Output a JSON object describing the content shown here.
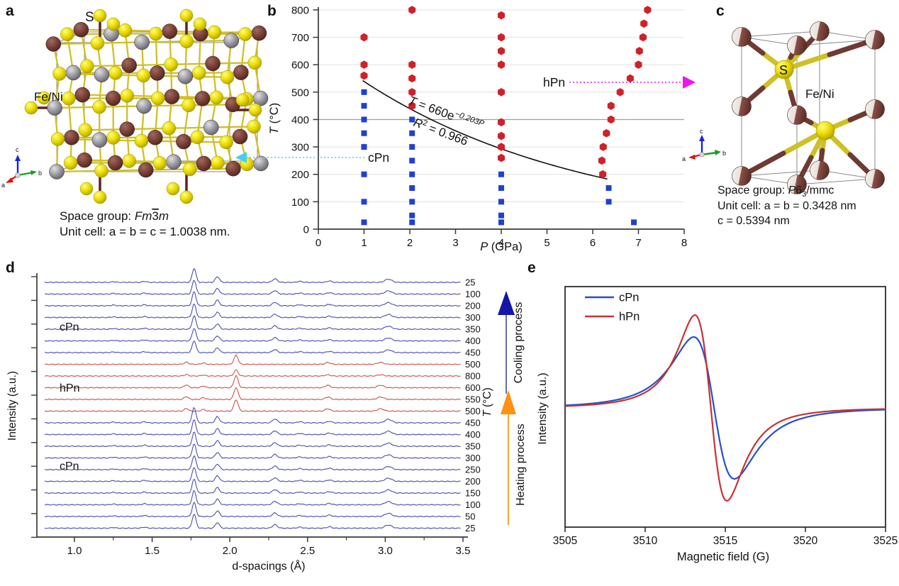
{
  "panel_a": {
    "label": "a",
    "s_label": "S",
    "metal_label": "Fe/Ni",
    "axis": {
      "a": "a",
      "b": "b",
      "c": "c"
    },
    "caption": {
      "sg_prefix": "Space group: ",
      "sg_italic": "Fm",
      "sg_bar": "3",
      "sg_end": "m",
      "unit": "Unit cell: a = b = c = 1.0038 nm."
    }
  },
  "panel_b": {
    "label": "b",
    "ylabel_T": "T",
    "ylabel_unit": " (°C)",
    "xlabel_P": "P",
    "xlabel_unit": " (GPa)",
    "cPn_label": "cPn",
    "hPn_label": "hPn",
    "eq_T": "T",
    "eq_mid": " = 660e",
    "eq_exp": "−0.203P",
    "r2_R": "R",
    "r2_sup": "2",
    "r2_rest": " = 0.966",
    "cPn_color": "#1743e0",
    "hPn_color": "#e02020",
    "cyan_arrow_color": "#45d0ee",
    "magenta_arrow_color": "#f012f0"
  },
  "panel_c": {
    "label": "c",
    "s_label": "S",
    "metal_label": "Fe/Ni",
    "axis": {
      "a": "a",
      "b": "b",
      "c": "c"
    },
    "caption": {
      "sg_prefix": "Space group: ",
      "sg_italic": "P",
      "sg_num": "6",
      "sg_sub": "3",
      "sg_end": "/mmc",
      "unit1": "Unit cell: a = b = 0.3428 nm",
      "unit2": "c = 0.5394 nm"
    }
  },
  "panel_d": {
    "label": "d",
    "xlabel": "d-spacings (Å)",
    "ylabel": "Intensity (a.u.)",
    "taxis_T": "T",
    "taxis_unit": " (°C)",
    "cPn_top": "cPn",
    "hPn_mid": "hPn",
    "cPn_bottom": "cPn",
    "cooling_text": "Cooling process",
    "heating_text": "Heating process",
    "cooling_text_color": "#2233cc",
    "heating_text_color": "#ee1111",
    "cooling_arrow_color": "#1515a8",
    "heating_arrow_color": "#ff9211"
  },
  "panel_e": {
    "label": "e",
    "xlabel": "Magnetic field (G)",
    "ylabel": "Intensity (a.u.)"
  },
  "structures": {
    "s_color": "#e6d800",
    "metal_brown": "#7a4038",
    "metal_gray": "#9a9aa2",
    "metal_white": "#f2efec",
    "bond_yellow": "#cfc026",
    "bond_maroon": "#6e3a32",
    "cell_line": "#8a8a8a",
    "stick_dark": "#5c2424"
  },
  "chart_data": [
    {
      "id": "b",
      "type": "scatter",
      "xlabel": "P (GPa)",
      "ylabel": "T (°C)",
      "xlim": [
        0,
        8
      ],
      "ylim": [
        0,
        800
      ],
      "xticks": [
        0,
        1,
        2,
        3,
        4,
        5,
        6,
        7,
        8
      ],
      "yticks": [
        0,
        100,
        200,
        300,
        400,
        500,
        600,
        700,
        800
      ],
      "grid": "horizontal",
      "highlight_gridline": 400,
      "series": [
        {
          "name": "cPn",
          "marker": "square",
          "color": "#1f41d0",
          "points": [
            [
              1,
              25
            ],
            [
              1,
              100
            ],
            [
              1,
              200
            ],
            [
              1,
              300
            ],
            [
              1,
              350
            ],
            [
              1,
              400
            ],
            [
              1,
              450
            ],
            [
              1,
              500
            ],
            [
              2.05,
              25
            ],
            [
              2.05,
              50
            ],
            [
              2.05,
              100
            ],
            [
              2.05,
              150
            ],
            [
              2.05,
              200
            ],
            [
              2.05,
              250
            ],
            [
              2.05,
              300
            ],
            [
              2.05,
              350
            ],
            [
              2.05,
              400
            ],
            [
              4,
              25
            ],
            [
              4,
              50
            ],
            [
              4,
              100
            ],
            [
              4,
              150
            ],
            [
              4,
              200
            ],
            [
              6.35,
              100
            ],
            [
              6.35,
              150
            ],
            [
              6.9,
              25
            ]
          ]
        },
        {
          "name": "hPn",
          "marker": "hexagon",
          "color": "#cf2127",
          "points": [
            [
              1,
              560
            ],
            [
              1,
              600
            ],
            [
              1,
              700
            ],
            [
              2.05,
              450
            ],
            [
              2.05,
              500
            ],
            [
              2.05,
              550
            ],
            [
              2.05,
              600
            ],
            [
              2.05,
              800
            ],
            [
              4,
              260
            ],
            [
              4,
              300
            ],
            [
              4,
              340
            ],
            [
              4,
              390
            ],
            [
              4,
              500
            ],
            [
              4,
              600
            ],
            [
              4,
              650
            ],
            [
              4,
              700
            ],
            [
              4,
              780
            ],
            [
              6.22,
              200
            ],
            [
              6.2,
              250
            ],
            [
              6.23,
              300
            ],
            [
              6.3,
              350
            ],
            [
              6.4,
              400
            ],
            [
              6.4,
              450
            ],
            [
              6.6,
              500
            ],
            [
              6.82,
              550
            ],
            [
              7.0,
              600
            ],
            [
              7.02,
              650
            ],
            [
              7.1,
              700
            ],
            [
              7.12,
              750
            ],
            [
              7.2,
              800
            ]
          ]
        }
      ],
      "fit": {
        "equation": "T = 660e^(−0.203P)",
        "A": 660,
        "k": 0.203,
        "r2": 0.966,
        "p_start": 0.97,
        "p_end": 6.33
      },
      "annotations": [
        {
          "text": "cPn",
          "arrow": "left",
          "T": 262
        },
        {
          "text": "hPn",
          "arrow": "right",
          "T": 535
        }
      ]
    },
    {
      "id": "d",
      "type": "line-stack",
      "xlabel": "d-spacings (Å)",
      "ylabel": "Intensity (a.u.)",
      "xlim": [
        0.76,
        3.5
      ],
      "xticks": [
        1.0,
        1.5,
        2.0,
        2.5,
        3.0,
        3.5
      ],
      "minor_xticks": [
        1.25,
        1.75,
        2.25,
        2.75,
        3.25
      ],
      "temp_axis_label": "T (°C)",
      "traces": [
        {
          "temp": "25",
          "phase": "cPn",
          "scale": 1.0
        },
        {
          "temp": "100",
          "phase": "cPn",
          "scale": 1.0
        },
        {
          "temp": "200",
          "phase": "cPn",
          "scale": 1.0
        },
        {
          "temp": "300",
          "phase": "cPn",
          "scale": 0.95
        },
        {
          "temp": "350",
          "phase": "cPn",
          "scale": 0.95
        },
        {
          "temp": "400",
          "phase": "cPn",
          "scale": 0.9
        },
        {
          "temp": "450",
          "phase": "cPn",
          "scale": 0.85
        },
        {
          "temp": "500",
          "phase": "hPn",
          "scale": 0.75
        },
        {
          "temp": "800",
          "phase": "hPn",
          "scale": 0.5
        },
        {
          "temp": "600",
          "phase": "hPn",
          "scale": 1.0
        },
        {
          "temp": "550",
          "phase": "hPn",
          "scale": 1.0
        },
        {
          "temp": "500",
          "phase": "hPn",
          "scale": 0.95
        },
        {
          "temp": "450",
          "phase": "cPn",
          "scale": 1.1
        },
        {
          "temp": "400",
          "phase": "cPn",
          "scale": 1.05
        },
        {
          "temp": "350",
          "phase": "cPn",
          "scale": 1.0
        },
        {
          "temp": "300",
          "phase": "cPn",
          "scale": 1.0
        },
        {
          "temp": "250",
          "phase": "cPn",
          "scale": 1.0
        },
        {
          "temp": "200",
          "phase": "cPn",
          "scale": 1.0
        },
        {
          "temp": "150",
          "phase": "cPn",
          "scale": 1.0
        },
        {
          "temp": "100",
          "phase": "cPn",
          "scale": 1.0
        },
        {
          "temp": "50",
          "phase": "cPn",
          "scale": 1.0
        },
        {
          "temp": "25",
          "phase": "cPn",
          "scale": 1.0
        }
      ],
      "phases": {
        "cPn": {
          "color": "#4d4db2",
          "peaks": [
            [
              1.25,
              1,
              0.013
            ],
            [
              1.45,
              1.5,
              0.013
            ],
            [
              1.77,
              20,
              0.012
            ],
            [
              1.92,
              8,
              0.013
            ],
            [
              2.29,
              5,
              0.015
            ],
            [
              2.45,
              1.5,
              0.015
            ],
            [
              2.64,
              2,
              0.015
            ],
            [
              3.02,
              4.5,
              0.022
            ]
          ]
        },
        "hPn": {
          "color": "#c85450",
          "peaks": [
            [
              1.72,
              4,
              0.013
            ],
            [
              1.83,
              2.5,
              0.013
            ],
            [
              2.04,
              17,
              0.013
            ],
            [
              2.63,
              3.5,
              0.016
            ],
            [
              2.97,
              3.5,
              0.02
            ]
          ]
        }
      }
    },
    {
      "id": "e",
      "type": "line",
      "xlabel": "Magnetic field (G)",
      "ylabel": "Intensity (a.u.)",
      "xlim": [
        3505,
        3525
      ],
      "xticks": [
        3505,
        3510,
        3515,
        3520,
        3525
      ],
      "series": [
        {
          "name": "cPn",
          "color": "#2451c8",
          "center": 3514.3,
          "width": 2.2,
          "amplitude": 100,
          "peak_x": 3513.0,
          "trough_x": 3515.5
        },
        {
          "name": "hPn",
          "color": "#c83232",
          "center": 3514.1,
          "width": 1.73,
          "amplitude": 131,
          "peak_x": 3513.1,
          "trough_x": 3515.1
        }
      ],
      "legend": [
        "cPn",
        "hPn"
      ],
      "legend_position": "top-left"
    }
  ]
}
